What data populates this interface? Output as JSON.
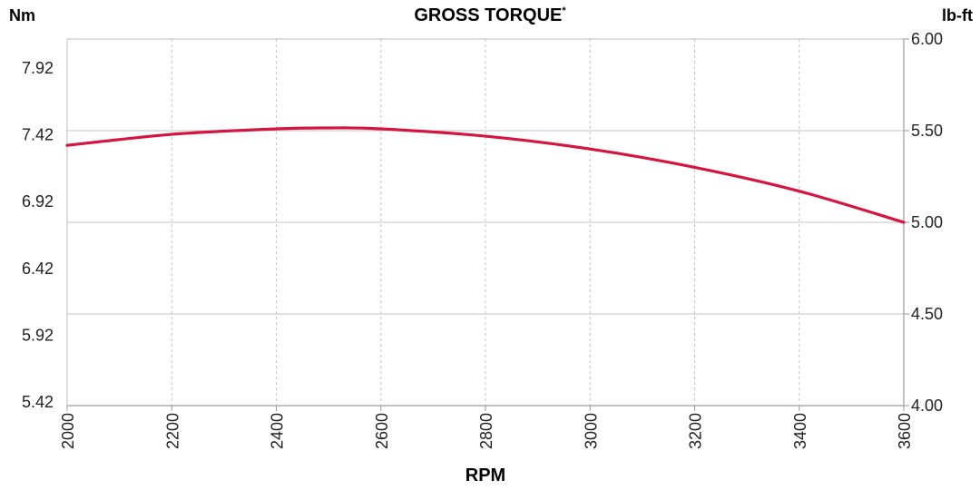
{
  "chart_data": {
    "type": "line",
    "title": "GROSS TORQUE",
    "title_marker": "*",
    "xlabel": "RPM",
    "ylabel_left": "Nm",
    "ylabel_right": "lb-ft",
    "xlim": [
      2000,
      3600
    ],
    "ylim_right": [
      4.0,
      6.0
    ],
    "x_ticks": [
      "2000",
      "2200",
      "2400",
      "2600",
      "2800",
      "3000",
      "3200",
      "3400",
      "3600"
    ],
    "y_ticks_left": [
      "7.92",
      "7.42",
      "6.92",
      "6.42",
      "5.92",
      "5.42"
    ],
    "y_ticks_right": [
      "6.00",
      "5.50",
      "5.00",
      "4.50",
      "4.00"
    ],
    "grid": true,
    "series": [
      {
        "color": "#d6153f",
        "x": [
          2000,
          2200,
          2400,
          2500,
          2600,
          2800,
          3000,
          3200,
          3400,
          3600
        ],
        "y": [
          5.42,
          5.48,
          5.51,
          5.515,
          5.51,
          5.47,
          5.4,
          5.3,
          5.17,
          5.0
        ]
      }
    ]
  }
}
